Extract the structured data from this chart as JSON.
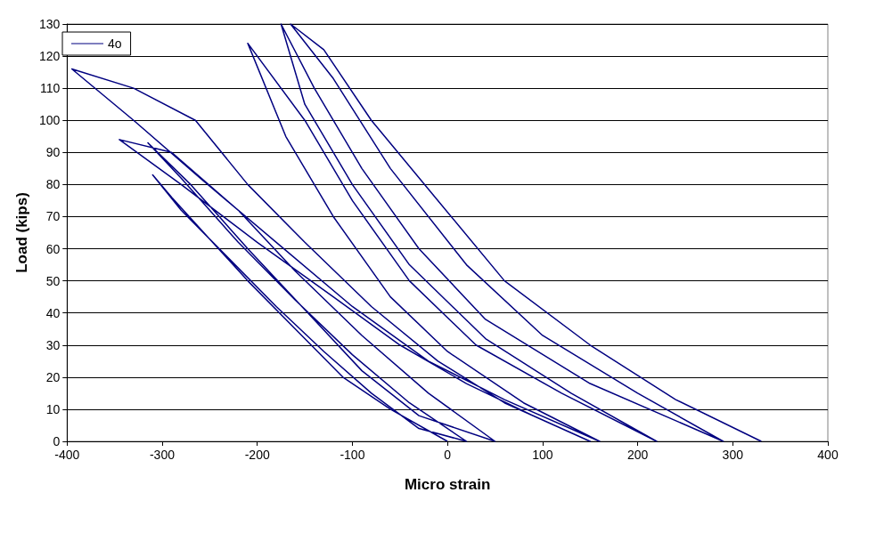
{
  "chart_data": {
    "type": "line",
    "xlabel": "Micro strain",
    "ylabel": "Load (kips)",
    "xlim": [
      -400,
      400
    ],
    "xticks": [
      -400,
      -300,
      -200,
      -100,
      0,
      100,
      200,
      300,
      400
    ],
    "ylim": [
      0,
      130
    ],
    "yticks": [
      0,
      10,
      20,
      30,
      40,
      50,
      60,
      70,
      80,
      90,
      100,
      110,
      120,
      130
    ],
    "grid": "y",
    "legend": "top left",
    "marker": "none",
    "line_style": "solid",
    "series": [
      {
        "name": "4o",
        "color": "#000080",
        "x": [
          0,
          -60,
          -110,
          -160,
          -210,
          -250,
          -290,
          -310,
          -280,
          -230,
          -180,
          -130,
          -80,
          -30,
          20,
          -40,
          -100,
          -160,
          -220,
          -280,
          -315,
          -270,
          -210,
          -150,
          -90,
          -30,
          50,
          -20,
          -90,
          -160,
          -220,
          -290,
          -345,
          -280,
          -200,
          -120,
          -50,
          20,
          90,
          150,
          60,
          -10,
          -80,
          -150,
          -210,
          -265,
          -330,
          -395,
          -330,
          -260,
          -180,
          -100,
          -20,
          60,
          160,
          80,
          0,
          -60,
          -120,
          -170,
          -210,
          -150,
          -100,
          -40,
          30,
          120,
          220,
          130,
          40,
          -40,
          -100,
          -150,
          -175,
          -140,
          -90,
          -30,
          40,
          150,
          290,
          200,
          100,
          20,
          -60,
          -120,
          -165,
          -130,
          -80,
          -10,
          60,
          150,
          240,
          330
        ],
        "values": [
          0,
          10,
          20,
          35,
          50,
          63,
          76,
          83,
          72,
          57,
          42,
          28,
          15,
          4,
          0,
          12,
          27,
          44,
          62,
          82,
          93,
          80,
          60,
          41,
          22,
          8,
          0,
          15,
          33,
          53,
          72,
          90,
          94,
          80,
          62,
          45,
          30,
          18,
          8,
          0,
          12,
          25,
          42,
          62,
          80,
          100,
          110,
          116,
          100,
          82,
          62,
          42,
          25,
          13,
          0,
          12,
          28,
          45,
          70,
          95,
          124,
          100,
          75,
          50,
          30,
          15,
          0,
          15,
          32,
          55,
          80,
          105,
          130,
          110,
          85,
          60,
          38,
          18,
          0,
          15,
          33,
          55,
          85,
          113,
          130,
          122,
          100,
          75,
          50,
          30,
          13,
          0
        ]
      }
    ]
  }
}
